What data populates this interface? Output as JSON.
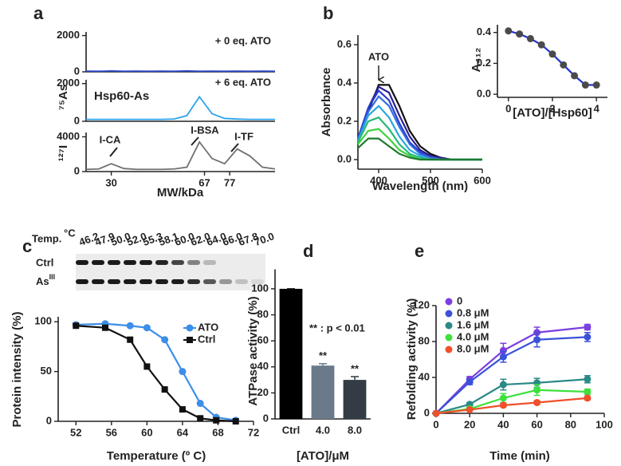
{
  "panel_labels": [
    "a",
    "b",
    "c",
    "d",
    "e"
  ],
  "blot": {
    "title": "Temp.",
    "unit": "°C",
    "temperatures": [
      "46.2",
      "47.9",
      "50.0",
      "52.0",
      "55.3",
      "58.1",
      "60.0",
      "62.0",
      "64.0",
      "66.0",
      "67.8",
      "70.0"
    ],
    "rows": [
      {
        "label": "Ctrl"
      },
      {
        "label": "As",
        "superscript": "III"
      }
    ]
  },
  "chart_data": [
    {
      "type": "line",
      "ylabel": "⁷⁵As",
      "annotation": "+ 0 eq. ATO",
      "x": [
        20,
        25,
        30,
        35,
        40,
        45,
        50,
        55,
        60,
        65,
        70,
        75,
        80,
        85,
        90,
        95
      ],
      "xlim": [
        20,
        95
      ],
      "ylim": [
        0,
        2200
      ],
      "yticks": [
        0,
        2000
      ],
      "series": [
        {
          "color": "#2f45c8",
          "values": [
            40,
            30,
            50,
            30,
            40,
            30,
            40,
            30,
            50,
            30,
            40,
            30,
            40,
            30,
            40,
            30
          ]
        }
      ]
    },
    {
      "type": "line",
      "annotation": "+ 6 eq. ATO",
      "x": [
        20,
        25,
        30,
        35,
        40,
        45,
        50,
        55,
        60,
        65,
        70,
        75,
        80,
        85,
        90,
        95
      ],
      "xlim": [
        20,
        95
      ],
      "ylim": [
        0,
        2200
      ],
      "yticks": [
        0,
        2000
      ],
      "series": [
        {
          "name": "Hsp60-As",
          "color": "#2ea3ea",
          "values": [
            100,
            100,
            100,
            100,
            100,
            100,
            100,
            120,
            300,
            1300,
            400,
            150,
            120,
            100,
            100,
            100
          ]
        }
      ]
    },
    {
      "type": "line",
      "ylabel": "¹²⁷I",
      "xlabel": "MW/kDa",
      "annotations": [
        "I-CA",
        "I-BSA",
        "I-TF"
      ],
      "x": [
        20,
        25,
        30,
        35,
        40,
        45,
        50,
        55,
        60,
        65,
        70,
        75,
        80,
        85,
        90,
        95
      ],
      "xlim": [
        20,
        95
      ],
      "ylim": [
        0,
        4500
      ],
      "yticks": [
        0,
        4000
      ],
      "xticks": [
        30,
        67,
        77
      ],
      "series": [
        {
          "color": "#707070",
          "values": [
            250,
            300,
            900,
            350,
            250,
            250,
            250,
            300,
            500,
            3400,
            1500,
            900,
            2600,
            1800,
            500,
            300
          ]
        }
      ]
    },
    {
      "type": "line",
      "ylabel": "Absorbance",
      "xlabel": "Wavelength (nm)",
      "annotation": "ATO",
      "x": [
        360,
        380,
        400,
        420,
        440,
        460,
        480,
        500,
        520,
        540,
        560,
        580,
        600
      ],
      "xlim": [
        360,
        600
      ],
      "ylim": [
        -0.05,
        0.65
      ],
      "yticks": [
        {
          "value": 0,
          "label": "0.0"
        },
        0.2,
        0.4,
        0.6
      ],
      "xticks": [
        400,
        500,
        600
      ],
      "series": [
        {
          "color": "#111111",
          "values": [
            0.1,
            0.25,
            0.39,
            0.39,
            0.28,
            0.15,
            0.07,
            0.03,
            0.01,
            0,
            0,
            0,
            0
          ]
        },
        {
          "color": "#2a1f8a",
          "values": [
            0.11,
            0.27,
            0.38,
            0.35,
            0.23,
            0.12,
            0.05,
            0.02,
            0.01,
            0,
            0,
            0,
            0
          ]
        },
        {
          "color": "#2c3bd0",
          "values": [
            0.11,
            0.27,
            0.36,
            0.31,
            0.19,
            0.09,
            0.04,
            0.01,
            0,
            0,
            0,
            0,
            0
          ]
        },
        {
          "color": "#2f6fe0",
          "values": [
            0.1,
            0.25,
            0.33,
            0.28,
            0.17,
            0.08,
            0.03,
            0.01,
            0,
            0,
            0,
            0,
            0
          ]
        },
        {
          "color": "#2aa6e0",
          "values": [
            0.1,
            0.23,
            0.28,
            0.22,
            0.12,
            0.05,
            0.02,
            0,
            0,
            0,
            0,
            0,
            0
          ]
        },
        {
          "color": "#27b87a",
          "values": [
            0.09,
            0.2,
            0.22,
            0.16,
            0.08,
            0.03,
            0.01,
            0,
            0,
            0,
            0,
            0,
            0
          ]
        },
        {
          "color": "#3fd13f",
          "values": [
            0.08,
            0.15,
            0.16,
            0.11,
            0.05,
            0.02,
            0,
            0,
            0,
            0,
            0,
            0,
            0
          ]
        },
        {
          "color": "#1e7a2e",
          "values": [
            0.06,
            0.11,
            0.11,
            0.07,
            0.03,
            0.01,
            0,
            0,
            0,
            0,
            0,
            0,
            0
          ]
        }
      ]
    },
    {
      "type": "line",
      "markers": true,
      "ylabel": "A₄₁₂",
      "xlabel": "[ATO]/[Hsp60]",
      "x": [
        0,
        0.5,
        1,
        1.5,
        2,
        2.5,
        3,
        3.5,
        4
      ],
      "xlim": [
        -0.5,
        4.5
      ],
      "ylim": [
        -0.02,
        0.45
      ],
      "yticks": [
        {
          "value": 0,
          "label": "0.0"
        },
        0.2,
        0.4
      ],
      "xticks": [
        0,
        2,
        4
      ],
      "series": [
        {
          "color": "#2233cc",
          "marker_color": "#4a4a4a",
          "values": [
            0.41,
            0.39,
            0.36,
            0.32,
            0.26,
            0.19,
            0.12,
            0.06,
            0.06
          ]
        }
      ]
    },
    {
      "type": "scatter",
      "ylabel": "Protein intensity (%)",
      "xlabel": "Temperature (º C)",
      "legend": "upper right",
      "x": [
        52,
        55.3,
        58.1,
        60,
        62,
        64,
        66,
        67.8,
        70
      ],
      "xlim": [
        50,
        72
      ],
      "ylim": [
        0,
        105
      ],
      "yticks": [
        0,
        50,
        100
      ],
      "xticks": [
        52,
        56,
        60,
        64,
        68,
        72
      ],
      "series": [
        {
          "name": "ATO",
          "color": "#3c8ee8",
          "marker": "circle",
          "values": [
            97,
            98,
            96,
            94,
            82,
            50,
            18,
            4,
            1
          ]
        },
        {
          "name": "Ctrl",
          "color": "#111111",
          "marker": "square",
          "values": [
            96,
            94,
            82,
            55,
            32,
            12,
            3,
            1,
            0
          ]
        }
      ]
    },
    {
      "type": "bar",
      "ylabel": "ATPase activity (%)",
      "xlabel": "[ATO]/μM",
      "annotation": "** : p < 0.01",
      "categories": [
        "Ctrl",
        "4.0",
        "8.0"
      ],
      "values": [
        100,
        41,
        30
      ],
      "errors": [
        0,
        1.5,
        2.5
      ],
      "colors": [
        "#000000",
        "#6a7a8a",
        "#333c44"
      ],
      "significance": [
        null,
        "**",
        "**"
      ],
      "ylim": [
        0,
        115
      ],
      "yticks": [
        0,
        20,
        40,
        60,
        80,
        100
      ]
    },
    {
      "type": "line",
      "markers": true,
      "ylabel": "Refolding activity (%)",
      "xlabel": "Time (min)",
      "legend": "upper left",
      "x": [
        0,
        20,
        40,
        60,
        90
      ],
      "xlim": [
        0,
        100
      ],
      "ylim": [
        0,
        120
      ],
      "yticks": [
        0,
        40,
        80,
        120
      ],
      "xticks": [
        0,
        20,
        40,
        60,
        80,
        100
      ],
      "series": [
        {
          "name": "0",
          "color": "#7b3fe0",
          "values": [
            0,
            38,
            70,
            90,
            96
          ],
          "errors": [
            1,
            3,
            8,
            6,
            3
          ]
        },
        {
          "name": "0.8 μM",
          "color": "#3a52d8",
          "values": [
            0,
            35,
            63,
            82,
            85
          ],
          "errors": [
            1,
            3,
            6,
            8,
            5
          ]
        },
        {
          "name": "1.6 μM",
          "color": "#2a8a86",
          "values": [
            0,
            10,
            32,
            34,
            38
          ],
          "errors": [
            1,
            2,
            6,
            5,
            4
          ]
        },
        {
          "name": "4.0 μM",
          "color": "#3ee03e",
          "values": [
            0,
            5,
            17,
            26,
            24
          ],
          "errors": [
            1,
            2,
            5,
            6,
            3
          ]
        },
        {
          "name": "8.0 μM",
          "color": "#f0502a",
          "values": [
            0,
            4,
            9,
            12,
            17
          ],
          "errors": [
            0,
            1,
            2,
            2,
            2
          ]
        }
      ]
    }
  ]
}
